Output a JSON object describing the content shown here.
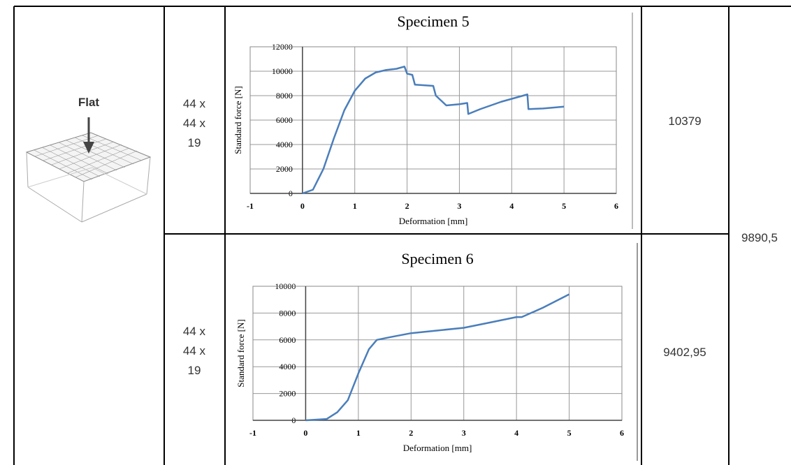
{
  "table": {
    "sample": {
      "label": "Flat"
    },
    "rows": [
      {
        "dimensions": [
          "44 x",
          "44 x",
          "19"
        ],
        "max_force": "10379"
      },
      {
        "dimensions": [
          "44 x",
          "44  x",
          "19"
        ],
        "max_force": "9402,95"
      }
    ],
    "average": "9890,5"
  },
  "chart_data": [
    {
      "type": "line",
      "title": "Specimen 5",
      "x_label": "Deformation [mm]",
      "y_label": "Standard force [N]",
      "xlim": [
        -1,
        6
      ],
      "xticks": [
        -1,
        0,
        1,
        2,
        3,
        4,
        5,
        6
      ],
      "ylim": [
        0,
        12000
      ],
      "yticks": [
        0,
        2000,
        4000,
        6000,
        8000,
        10000,
        12000
      ],
      "grid": true,
      "x": [
        0,
        0.2,
        0.4,
        0.6,
        0.8,
        1.0,
        1.2,
        1.4,
        1.6,
        1.8,
        1.95,
        2.0,
        2.1,
        2.15,
        2.5,
        2.55,
        2.75,
        3.0,
        3.15,
        3.17,
        3.4,
        3.8,
        4.3,
        4.32,
        4.6,
        5.0
      ],
      "series": [
        {
          "color": "#4a7ebb",
          "values": [
            0,
            300,
            2000,
            4500,
            6800,
            8400,
            9400,
            9900,
            10100,
            10200,
            10380,
            9800,
            9700,
            8900,
            8800,
            8000,
            7200,
            7300,
            7400,
            6500,
            6900,
            7500,
            8100,
            6900,
            6950,
            7100
          ]
        }
      ]
    },
    {
      "type": "line",
      "title": "Specimen 6",
      "x_label": "Deformation [mm]",
      "y_label": "Standard force [N]",
      "xlim": [
        -1,
        6
      ],
      "xticks": [
        -1,
        0,
        1,
        2,
        3,
        4,
        5,
        6
      ],
      "ylim": [
        0,
        10000
      ],
      "yticks": [
        0,
        2000,
        4000,
        6000,
        8000,
        10000
      ],
      "grid": true,
      "x": [
        0,
        0.4,
        0.6,
        0.8,
        1.0,
        1.2,
        1.35,
        1.6,
        2.0,
        2.5,
        3.0,
        3.5,
        4.0,
        4.1,
        4.5,
        5.0
      ],
      "series": [
        {
          "color": "#4a7ebb",
          "values": [
            0,
            100,
            600,
            1500,
            3500,
            5300,
            6000,
            6200,
            6500,
            6700,
            6900,
            7300,
            7700,
            7700,
            8400,
            9400
          ]
        }
      ]
    }
  ]
}
